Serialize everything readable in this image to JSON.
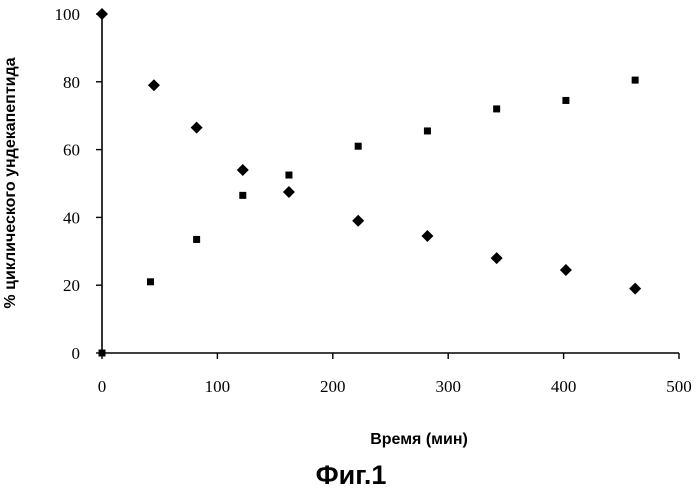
{
  "chart_data": {
    "type": "scatter",
    "title": "",
    "caption": "Фиг.1",
    "xlabel": "Время (мин)",
    "ylabel": "% циклического ундекапептида",
    "xlim": [
      0,
      500
    ],
    "ylim": [
      0,
      100
    ],
    "x_ticks": [
      0,
      100,
      200,
      300,
      400,
      500
    ],
    "y_ticks": [
      0,
      20,
      40,
      60,
      80,
      100
    ],
    "grid": false,
    "legend": "none",
    "series": [
      {
        "marker": "diamond",
        "color": "#000000",
        "points": [
          {
            "x": 0,
            "y": 100
          },
          {
            "x": 45,
            "y": 79
          },
          {
            "x": 82,
            "y": 66.5
          },
          {
            "x": 122,
            "y": 54
          },
          {
            "x": 162,
            "y": 47.5
          },
          {
            "x": 222,
            "y": 39
          },
          {
            "x": 282,
            "y": 34.5
          },
          {
            "x": 342,
            "y": 28
          },
          {
            "x": 402,
            "y": 24.5
          },
          {
            "x": 462,
            "y": 19
          }
        ]
      },
      {
        "marker": "square",
        "color": "#000000",
        "points": [
          {
            "x": 0,
            "y": 0
          },
          {
            "x": 42,
            "y": 21
          },
          {
            "x": 82,
            "y": 33.5
          },
          {
            "x": 122,
            "y": 46.5
          },
          {
            "x": 162,
            "y": 52.5
          },
          {
            "x": 222,
            "y": 61
          },
          {
            "x": 282,
            "y": 65.5
          },
          {
            "x": 342,
            "y": 72
          },
          {
            "x": 402,
            "y": 74.5
          },
          {
            "x": 462,
            "y": 80.5
          }
        ]
      }
    ]
  }
}
